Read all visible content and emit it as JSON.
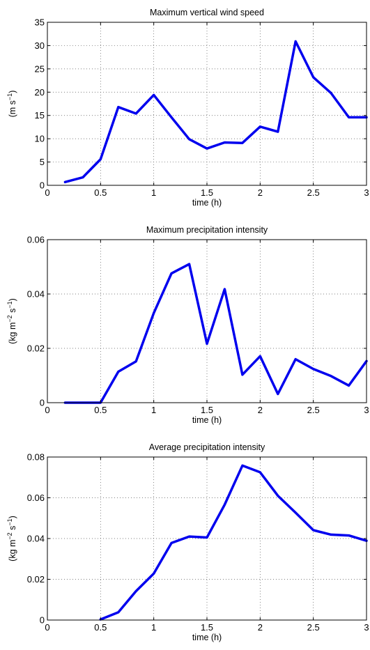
{
  "chart_data": [
    {
      "type": "line",
      "title": "Maximum vertical wind speed",
      "xlabel": "time (h)",
      "ylabel": "(m s",
      "ylabel_sup": "−1",
      "ylabel_tail": ")",
      "xlim": [
        0,
        3
      ],
      "ylim": [
        0,
        35
      ],
      "xticks": [
        0,
        0.5,
        1,
        1.5,
        2,
        2.5,
        3
      ],
      "xtick_labels": [
        "0",
        "0.5",
        "1",
        "1.5",
        "2",
        "2.5",
        "3"
      ],
      "yticks": [
        0,
        5,
        10,
        15,
        20,
        25,
        30,
        35
      ],
      "ytick_labels": [
        "0",
        "5",
        "10",
        "15",
        "20",
        "25",
        "30",
        "35"
      ],
      "grid": true,
      "color": "#0000ee",
      "x": [
        0.1667,
        0.3333,
        0.5,
        0.6667,
        0.8333,
        1.0,
        1.1667,
        1.3333,
        1.5,
        1.6667,
        1.8333,
        2.0,
        2.1667,
        2.3333,
        2.5,
        2.6667,
        2.8333,
        3.0
      ],
      "y": [
        0.7,
        1.7,
        5.6,
        16.8,
        15.4,
        19.4,
        14.6,
        9.9,
        7.9,
        9.2,
        9.1,
        12.6,
        11.5,
        30.9,
        23.2,
        19.8,
        14.6,
        14.6
      ]
    },
    {
      "type": "line",
      "title": "Maximum precipitation intensity",
      "xlabel": "time (h)",
      "ylabel": "(kg m",
      "ylabel_sup": "−2",
      "ylabel_mid": " s",
      "ylabel_sup2": "−1",
      "ylabel_tail": ")",
      "xlim": [
        0,
        3
      ],
      "ylim": [
        0,
        0.06
      ],
      "xticks": [
        0,
        0.5,
        1,
        1.5,
        2,
        2.5,
        3
      ],
      "xtick_labels": [
        "0",
        "0.5",
        "1",
        "1.5",
        "2",
        "2.5",
        "3"
      ],
      "yticks": [
        0,
        0.02,
        0.04,
        0.06
      ],
      "ytick_labels": [
        "0",
        "0.02",
        "0.04",
        "0.06"
      ],
      "grid": true,
      "color": "#0000ee",
      "x": [
        0.1667,
        0.3333,
        0.5,
        0.6667,
        0.8333,
        1.0,
        1.1667,
        1.3333,
        1.5,
        1.6667,
        1.8333,
        2.0,
        2.1667,
        2.3333,
        2.5,
        2.6667,
        2.8333,
        3.0
      ],
      "y": [
        0,
        0,
        0,
        0.0114,
        0.0152,
        0.033,
        0.0476,
        0.051,
        0.0217,
        0.0418,
        0.0103,
        0.0171,
        0.0032,
        0.016,
        0.0124,
        0.0098,
        0.0063,
        0.0153
      ]
    },
    {
      "type": "line",
      "title": "Average precipitation intensity",
      "xlabel": "time (h)",
      "ylabel": "(kg m",
      "ylabel_sup": "−2",
      "ylabel_mid": " s",
      "ylabel_sup2": "−1",
      "ylabel_tail": ")",
      "xlim": [
        0,
        3
      ],
      "ylim": [
        0,
        0.08
      ],
      "xticks": [
        0,
        0.5,
        1,
        1.5,
        2,
        2.5,
        3
      ],
      "xtick_labels": [
        "0",
        "0.5",
        "1",
        "1.5",
        "2",
        "2.5",
        "3"
      ],
      "yticks": [
        0,
        0.02,
        0.04,
        0.06,
        0.08
      ],
      "ytick_labels": [
        "0",
        "0.02",
        "0.04",
        "0.06",
        "0.08"
      ],
      "grid": true,
      "color": "#0000ee",
      "x": [
        0.5,
        0.6667,
        0.8333,
        1.0,
        1.1667,
        1.3333,
        1.5,
        1.6667,
        1.8333,
        2.0,
        2.1667,
        2.3333,
        2.5,
        2.6667,
        2.8333,
        3.0
      ],
      "y": [
        0.0003,
        0.0038,
        0.0142,
        0.0228,
        0.0378,
        0.041,
        0.0405,
        0.0566,
        0.0758,
        0.0725,
        0.061,
        0.0527,
        0.0441,
        0.0419,
        0.0415,
        0.0389
      ]
    }
  ]
}
